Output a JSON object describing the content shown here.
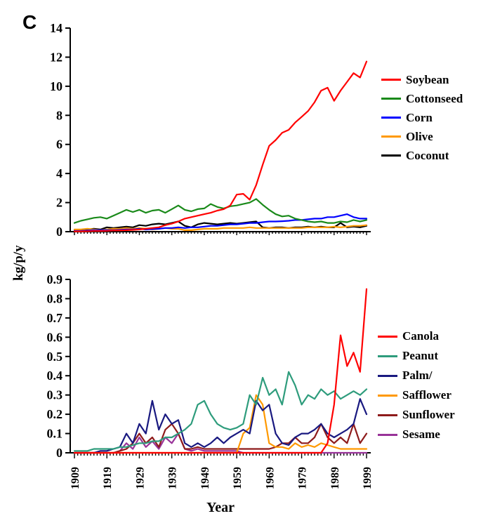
{
  "labels": {
    "panel": "C",
    "ylabel": "kg/p/y",
    "xlabel": "Year"
  },
  "x_decade_labels": [
    "1909",
    "1919",
    "1929",
    "1939",
    "1949",
    "1959",
    "1969",
    "1979",
    "1989",
    "1999"
  ],
  "chart_data": [
    {
      "type": "line",
      "panel": "top",
      "ylabel": "kg/p/y",
      "ylim": [
        0,
        14
      ],
      "ytick_labels": [
        "0",
        "2",
        "4",
        "6",
        "8",
        "10",
        "12",
        "14"
      ],
      "x_range": [
        1909,
        1999
      ],
      "x": [
        1909,
        1911,
        1913,
        1915,
        1917,
        1919,
        1921,
        1923,
        1925,
        1927,
        1929,
        1931,
        1933,
        1935,
        1937,
        1939,
        1941,
        1943,
        1945,
        1947,
        1949,
        1951,
        1953,
        1955,
        1957,
        1959,
        1961,
        1963,
        1965,
        1967,
        1969,
        1971,
        1973,
        1975,
        1977,
        1979,
        1981,
        1983,
        1985,
        1987,
        1989,
        1991,
        1993,
        1995,
        1997,
        1999
      ],
      "series": [
        {
          "name": "Soybean",
          "color": "#ff0000",
          "values": [
            0.02,
            0.02,
            0.03,
            0.05,
            0.05,
            0.06,
            0.08,
            0.08,
            0.1,
            0.12,
            0.15,
            0.2,
            0.25,
            0.3,
            0.45,
            0.55,
            0.7,
            0.9,
            1.0,
            1.1,
            1.2,
            1.3,
            1.45,
            1.55,
            1.8,
            2.55,
            2.6,
            2.2,
            3.2,
            4.6,
            5.9,
            6.3,
            6.8,
            7.0,
            7.5,
            7.9,
            8.3,
            8.9,
            9.7,
            9.9,
            9.0,
            9.7,
            10.3,
            10.9,
            10.6,
            11.7
          ]
        },
        {
          "name": "Cottonseed",
          "color": "#1a8a1a",
          "values": [
            0.6,
            0.75,
            0.85,
            0.95,
            1.0,
            0.9,
            1.1,
            1.3,
            1.5,
            1.35,
            1.5,
            1.3,
            1.45,
            1.5,
            1.3,
            1.55,
            1.8,
            1.5,
            1.4,
            1.55,
            1.6,
            1.9,
            1.7,
            1.6,
            1.75,
            1.8,
            1.9,
            2.0,
            2.25,
            1.85,
            1.5,
            1.2,
            1.05,
            1.1,
            0.9,
            0.8,
            0.7,
            0.65,
            0.7,
            0.6,
            0.6,
            0.7,
            0.65,
            0.8,
            0.7,
            0.8
          ]
        },
        {
          "name": "Corn",
          "color": "#0000ff",
          "values": [
            0.05,
            0.05,
            0.08,
            0.1,
            0.1,
            0.1,
            0.1,
            0.12,
            0.15,
            0.15,
            0.2,
            0.15,
            0.18,
            0.2,
            0.25,
            0.25,
            0.3,
            0.25,
            0.3,
            0.3,
            0.35,
            0.4,
            0.4,
            0.45,
            0.5,
            0.5,
            0.55,
            0.6,
            0.6,
            0.65,
            0.7,
            0.7,
            0.72,
            0.75,
            0.8,
            0.8,
            0.85,
            0.9,
            0.9,
            1.0,
            1.0,
            1.1,
            1.2,
            1.0,
            0.9,
            0.9
          ]
        },
        {
          "name": "Olive",
          "color": "#ff9900",
          "values": [
            0.15,
            0.15,
            0.2,
            0.15,
            0.1,
            0.15,
            0.2,
            0.2,
            0.25,
            0.2,
            0.25,
            0.2,
            0.15,
            0.2,
            0.25,
            0.2,
            0.2,
            0.1,
            0.1,
            0.15,
            0.2,
            0.2,
            0.2,
            0.25,
            0.25,
            0.25,
            0.25,
            0.3,
            0.25,
            0.25,
            0.25,
            0.25,
            0.25,
            0.25,
            0.25,
            0.25,
            0.3,
            0.3,
            0.3,
            0.3,
            0.35,
            0.3,
            0.35,
            0.4,
            0.4,
            0.45
          ]
        },
        {
          "name": "Coconut",
          "color": "#000000",
          "values": [
            0.1,
            0.1,
            0.15,
            0.2,
            0.15,
            0.3,
            0.25,
            0.3,
            0.35,
            0.3,
            0.45,
            0.4,
            0.5,
            0.55,
            0.5,
            0.6,
            0.7,
            0.4,
            0.3,
            0.5,
            0.6,
            0.55,
            0.5,
            0.55,
            0.6,
            0.55,
            0.6,
            0.65,
            0.7,
            0.3,
            0.25,
            0.3,
            0.3,
            0.25,
            0.3,
            0.3,
            0.35,
            0.3,
            0.35,
            0.3,
            0.3,
            0.6,
            0.3,
            0.35,
            0.3,
            0.4
          ]
        }
      ]
    },
    {
      "type": "line",
      "panel": "bottom",
      "ylabel": "kg/p/y",
      "ylim": [
        0,
        0.9
      ],
      "ytick_labels": [
        "0",
        "0.1",
        "0.2",
        "0.3",
        "0.4",
        "0.5",
        "0.6",
        "0.7",
        "0.8",
        "0.9"
      ],
      "x_range": [
        1909,
        1999
      ],
      "x": [
        1909,
        1911,
        1913,
        1915,
        1917,
        1919,
        1921,
        1923,
        1925,
        1927,
        1929,
        1931,
        1933,
        1935,
        1937,
        1939,
        1941,
        1943,
        1945,
        1947,
        1949,
        1951,
        1953,
        1955,
        1957,
        1959,
        1961,
        1963,
        1965,
        1967,
        1969,
        1971,
        1973,
        1975,
        1977,
        1979,
        1981,
        1983,
        1985,
        1987,
        1989,
        1991,
        1993,
        1995,
        1997,
        1999
      ],
      "series": [
        {
          "name": "Canola",
          "color": "#ff0000",
          "values": [
            0,
            0,
            0,
            0,
            0,
            0,
            0,
            0,
            0,
            0,
            0,
            0,
            0,
            0,
            0,
            0,
            0,
            0,
            0,
            0,
            0,
            0,
            0,
            0,
            0,
            0,
            0,
            0,
            0,
            0,
            0,
            0,
            0,
            0,
            0,
            0,
            0,
            0,
            0,
            0.05,
            0.25,
            0.61,
            0.45,
            0.52,
            0.42,
            0.85
          ]
        },
        {
          "name": "Peanut",
          "color": "#2e9c7c",
          "values": [
            0.01,
            0.01,
            0.01,
            0.02,
            0.02,
            0.02,
            0.02,
            0.03,
            0.03,
            0.04,
            0.05,
            0.05,
            0.06,
            0.06,
            0.08,
            0.08,
            0.1,
            0.12,
            0.15,
            0.25,
            0.27,
            0.2,
            0.15,
            0.13,
            0.12,
            0.13,
            0.15,
            0.3,
            0.25,
            0.39,
            0.3,
            0.33,
            0.25,
            0.42,
            0.35,
            0.25,
            0.3,
            0.28,
            0.33,
            0.3,
            0.32,
            0.28,
            0.3,
            0.32,
            0.3,
            0.33
          ]
        },
        {
          "name": "Palm/",
          "color": "#191980",
          "values": [
            0,
            0,
            0,
            0,
            0.01,
            0.01,
            0.02,
            0.03,
            0.1,
            0.05,
            0.15,
            0.1,
            0.27,
            0.12,
            0.2,
            0.15,
            0.17,
            0.05,
            0.03,
            0.05,
            0.03,
            0.05,
            0.08,
            0.05,
            0.08,
            0.1,
            0.12,
            0.1,
            0.27,
            0.22,
            0.25,
            0.1,
            0.05,
            0.04,
            0.08,
            0.1,
            0.1,
            0.12,
            0.15,
            0.1,
            0.08,
            0.1,
            0.12,
            0.15,
            0.28,
            0.2
          ]
        },
        {
          "name": "Safflower",
          "color": "#ff9900",
          "values": [
            0,
            0,
            0,
            0,
            0,
            0,
            0,
            0,
            0,
            0,
            0,
            0,
            0,
            0,
            0,
            0,
            0,
            0,
            0,
            0,
            0,
            0,
            0,
            0,
            0,
            0,
            0.1,
            0.13,
            0.3,
            0.25,
            0.05,
            0.03,
            0.03,
            0.02,
            0.05,
            0.03,
            0.04,
            0.03,
            0.05,
            0.04,
            0.03,
            0.02,
            0.02,
            0.02,
            0.02,
            0.02
          ]
        },
        {
          "name": "Sunflower",
          "color": "#8e1b1b",
          "values": [
            0,
            0,
            0,
            0,
            0,
            0,
            0,
            0.01,
            0.02,
            0.05,
            0.1,
            0.05,
            0.08,
            0.03,
            0.12,
            0.15,
            0.1,
            0.02,
            0.02,
            0.03,
            0.02,
            0.02,
            0.02,
            0.02,
            0.02,
            0.02,
            0.02,
            0.02,
            0.02,
            0.02,
            0.02,
            0.03,
            0.05,
            0.05,
            0.08,
            0.05,
            0.05,
            0.08,
            0.15,
            0.08,
            0.05,
            0.08,
            0.05,
            0.15,
            0.05,
            0.1
          ]
        },
        {
          "name": "Sesame",
          "color": "#993399",
          "values": [
            0,
            0,
            0,
            0,
            0,
            0,
            0,
            0.01,
            0.05,
            0.02,
            0.08,
            0.03,
            0.06,
            0.02,
            0.08,
            0.05,
            0.1,
            0.02,
            0.01,
            0.02,
            0.01,
            0.01,
            0.01,
            0.01,
            0.01,
            0.01,
            0,
            0,
            0,
            0,
            0,
            0,
            0,
            0,
            0,
            0,
            0,
            0,
            0,
            0,
            0,
            0,
            0,
            0,
            0,
            0
          ]
        }
      ]
    }
  ]
}
